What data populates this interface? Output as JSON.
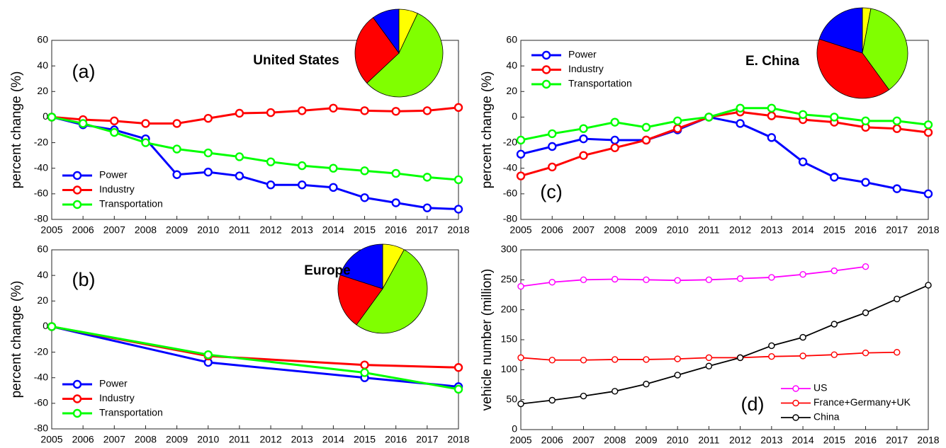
{
  "chart_data": [
    {
      "type": "line",
      "title": "United States",
      "panel_label": "(a)",
      "ylabel": "percent change (%)",
      "x": [
        2005,
        2006,
        2007,
        2008,
        2009,
        2010,
        2011,
        2012,
        2013,
        2014,
        2015,
        2016,
        2017,
        2018
      ],
      "xlim": [
        2005,
        2018
      ],
      "xticks": [
        2005,
        2006,
        2007,
        2008,
        2009,
        2010,
        2011,
        2012,
        2013,
        2014,
        2015,
        2016,
        2017,
        2018
      ],
      "ylim": [
        -80,
        60
      ],
      "yticks": [
        -80,
        -60,
        -40,
        -20,
        0,
        20,
        40,
        60
      ],
      "legend": "lower left",
      "series": [
        {
          "name": "Power",
          "color": "#0000ff",
          "values": [
            0,
            -6,
            -10,
            -17,
            -45,
            -43,
            -46,
            -53,
            -53,
            -55,
            -63,
            -67,
            -71,
            -72
          ]
        },
        {
          "name": "Industry",
          "color": "#ff0000",
          "values": [
            0,
            -2,
            -3,
            -5,
            -5,
            -1,
            3,
            3.5,
            5,
            7,
            5,
            4.5,
            5,
            7.5
          ]
        },
        {
          "name": "Transportation",
          "color": "#00ff00",
          "values": [
            0,
            -5,
            -12,
            -20,
            -25,
            -28,
            -31,
            -35,
            -38,
            -40,
            -42,
            -44,
            -47,
            -49
          ]
        }
      ],
      "inset": {
        "type": "pie",
        "values": [
          7,
          56,
          27,
          10
        ],
        "colors": [
          "#ffff00",
          "#80ff00",
          "#ff0000",
          "#0000ff"
        ]
      }
    },
    {
      "type": "line",
      "title": "Europe",
      "panel_label": "(b)",
      "ylabel": "percent change (%)",
      "x": [
        2005,
        2010,
        2015,
        2018
      ],
      "xlim": [
        2005,
        2018
      ],
      "xticks": [
        2005,
        2006,
        2007,
        2008,
        2009,
        2010,
        2011,
        2012,
        2013,
        2014,
        2015,
        2016,
        2017,
        2018
      ],
      "ylim": [
        -80,
        60
      ],
      "yticks": [
        -80,
        -60,
        -40,
        -20,
        0,
        20,
        40,
        60
      ],
      "legend": "lower left",
      "series": [
        {
          "name": "Power",
          "color": "#0000ff",
          "values": [
            0,
            -28,
            -40,
            -47
          ]
        },
        {
          "name": "Industry",
          "color": "#ff0000",
          "values": [
            0,
            -23,
            -30,
            -32
          ]
        },
        {
          "name": "Transportation",
          "color": "#00ff00",
          "values": [
            0,
            -22,
            -36,
            -49
          ]
        }
      ],
      "inset": {
        "type": "pie",
        "values": [
          8,
          52,
          20,
          20
        ],
        "colors": [
          "#ffff00",
          "#80ff00",
          "#ff0000",
          "#0000ff"
        ]
      }
    },
    {
      "type": "line",
      "title": "E. China",
      "panel_label": "(c)",
      "ylabel": "percent change (%)",
      "x": [
        2005,
        2006,
        2007,
        2008,
        2009,
        2010,
        2011,
        2012,
        2013,
        2014,
        2015,
        2016,
        2017,
        2018
      ],
      "xlim": [
        2005,
        2018
      ],
      "xticks": [
        2005,
        2006,
        2007,
        2008,
        2009,
        2010,
        2011,
        2012,
        2013,
        2014,
        2015,
        2016,
        2017,
        2018
      ],
      "ylim": [
        -80,
        60
      ],
      "yticks": [
        -80,
        -60,
        -40,
        -20,
        0,
        20,
        40,
        60
      ],
      "legend": "upper left",
      "series": [
        {
          "name": "Power",
          "color": "#0000ff",
          "values": [
            -29,
            -23,
            -17,
            -18,
            -18,
            -10,
            0,
            -5,
            -16,
            -35,
            -47,
            -51,
            -56,
            -60
          ]
        },
        {
          "name": "Industry",
          "color": "#ff0000",
          "values": [
            -46,
            -39,
            -30,
            -24,
            -18,
            -9,
            0,
            4,
            1,
            -2,
            -4,
            -8,
            -9,
            -12
          ]
        },
        {
          "name": "Transportation",
          "color": "#00ff00",
          "values": [
            -18,
            -13,
            -9,
            -4,
            -8,
            -3,
            0,
            7,
            7,
            2,
            0,
            -3,
            -3,
            -6
          ]
        }
      ],
      "inset": {
        "type": "pie",
        "values": [
          3,
          37,
          40,
          20
        ],
        "colors": [
          "#ffff00",
          "#80ff00",
          "#ff0000",
          "#0000ff"
        ]
      }
    },
    {
      "type": "line",
      "panel_label": "(d)",
      "ylabel": "vehicle number (million)",
      "x": [
        2005,
        2006,
        2007,
        2008,
        2009,
        2010,
        2011,
        2012,
        2013,
        2014,
        2015,
        2016,
        2017,
        2018
      ],
      "xlim": [
        2005,
        2018
      ],
      "xticks": [
        2005,
        2006,
        2007,
        2008,
        2009,
        2010,
        2011,
        2012,
        2013,
        2014,
        2015,
        2016,
        2017,
        2018
      ],
      "ylim": [
        0,
        300
      ],
      "yticks": [
        0,
        50,
        100,
        150,
        200,
        250,
        300
      ],
      "legend": "lower right",
      "series": [
        {
          "name": "US",
          "color": "#ff00ff",
          "values": [
            239,
            246,
            250,
            251,
            250,
            249,
            250,
            252,
            254,
            259,
            265,
            272,
            null,
            null
          ]
        },
        {
          "name": "France+Germany+UK",
          "color": "#ff0000",
          "values": [
            120,
            116,
            116,
            117,
            117,
            118,
            120,
            120,
            122,
            123,
            125,
            128,
            129,
            null
          ]
        },
        {
          "name": "China",
          "color": "#000000",
          "values": [
            43,
            49,
            56,
            64,
            76,
            91,
            106,
            120,
            140,
            154,
            176,
            195,
            218,
            241
          ]
        }
      ]
    }
  ]
}
